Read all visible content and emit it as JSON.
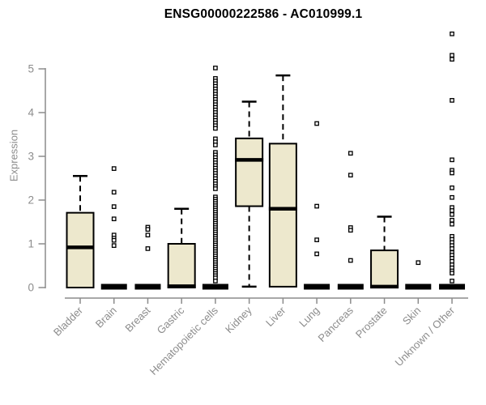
{
  "chart_data": {
    "type": "boxplot",
    "title": "ENSG00000222586 - AC010999.1",
    "xlabel": "",
    "ylabel": "Expression",
    "ylim": [
      0,
      5
    ],
    "yticks": [
      0,
      1,
      2,
      3,
      4,
      5
    ],
    "grid": false,
    "legend": "none",
    "box_fill": "#EDE8CD",
    "box_stroke": "#000000",
    "axis_color": "#8C8C8C",
    "categories": [
      "Bladder",
      "Brain",
      "Breast",
      "Gastric",
      "Hematopoietic cells",
      "Kidney",
      "Liver",
      "Lung",
      "Pancreas",
      "Prostate",
      "Skin",
      "Unknown / Other"
    ],
    "series": [
      {
        "name": "Bladder",
        "q1": 0,
        "median": 0.92,
        "q3": 1.71,
        "whisker_low": 0,
        "whisker_high": 2.55,
        "outliers": []
      },
      {
        "name": "Brain",
        "q1": 0,
        "median": 0,
        "q3": 0,
        "whisker_low": 0,
        "whisker_high": 0,
        "outliers": [
          2.72,
          2.18,
          1.85,
          1.57,
          1.2,
          1.13,
          1.08,
          0.96
        ]
      },
      {
        "name": "Breast",
        "q1": 0,
        "median": 0,
        "q3": 0,
        "whisker_low": 0,
        "whisker_high": 0,
        "outliers": [
          1.38,
          1.33,
          1.2,
          0.89
        ]
      },
      {
        "name": "Gastric",
        "q1": 0,
        "median": 0.03,
        "q3": 1.0,
        "whisker_low": 0,
        "whisker_high": 1.8,
        "outliers": []
      },
      {
        "name": "Hematopoietic cells",
        "q1": 0,
        "median": 0,
        "q3": 0,
        "whisker_low": 0,
        "whisker_high": 0,
        "outliers": [
          5.02,
          4.78,
          4.72,
          4.66,
          4.6,
          4.54,
          4.48,
          4.42,
          4.36,
          4.3,
          4.24,
          4.18,
          4.12,
          4.06,
          4.0,
          3.94,
          3.88,
          3.82,
          3.76,
          3.7,
          3.64,
          3.4,
          3.33,
          3.26,
          3.09,
          3.03,
          2.97,
          2.91,
          2.85,
          2.79,
          2.73,
          2.67,
          2.61,
          2.55,
          2.49,
          2.43,
          2.37,
          2.31,
          2.26,
          2.07,
          2.02,
          1.97,
          1.92,
          1.87,
          1.82,
          1.77,
          1.72,
          1.67,
          1.62,
          1.57,
          1.52,
          1.47,
          1.42,
          1.37,
          1.32,
          1.27,
          1.22,
          1.17,
          1.12,
          1.07,
          1.02,
          0.97,
          0.92,
          0.87,
          0.82,
          0.77,
          0.72,
          0.67,
          0.62,
          0.57,
          0.52,
          0.47,
          0.42,
          0.37,
          0.32,
          0.27,
          0.22,
          0.15
        ]
      },
      {
        "name": "Kidney",
        "q1": 1.86,
        "median": 2.92,
        "q3": 3.41,
        "whisker_low": 0.02,
        "whisker_high": 4.25,
        "outliers": []
      },
      {
        "name": "Liver",
        "q1": 0.02,
        "median": 1.8,
        "q3": 3.29,
        "whisker_low": 0.02,
        "whisker_high": 4.85,
        "outliers": []
      },
      {
        "name": "Lung",
        "q1": 0,
        "median": 0,
        "q3": 0,
        "whisker_low": 0,
        "whisker_high": 0,
        "outliers": [
          3.75,
          1.86,
          1.09,
          0.77
        ]
      },
      {
        "name": "Pancreas",
        "q1": 0,
        "median": 0,
        "q3": 0,
        "whisker_low": 0,
        "whisker_high": 0,
        "outliers": [
          3.07,
          2.57,
          1.37,
          1.31,
          0.62
        ]
      },
      {
        "name": "Prostate",
        "q1": 0,
        "median": 0.02,
        "q3": 0.85,
        "whisker_low": 0,
        "whisker_high": 1.62,
        "outliers": []
      },
      {
        "name": "Skin",
        "q1": 0,
        "median": 0,
        "q3": 0,
        "whisker_low": 0,
        "whisker_high": 0,
        "outliers": [
          0.57
        ]
      },
      {
        "name": "Unknown / Other",
        "q1": 0,
        "median": 0,
        "q3": 0,
        "whisker_low": 0,
        "whisker_high": 0,
        "outliers": [
          5.8,
          5.31,
          5.22,
          4.28,
          2.92,
          2.68,
          2.62,
          2.28,
          2.06,
          1.83,
          1.76,
          1.67,
          1.54,
          1.45,
          1.17,
          1.1,
          1.03,
          0.96,
          0.89,
          0.8,
          0.74,
          0.67,
          0.6,
          0.52,
          0.45,
          0.38,
          0.33,
          0.15
        ]
      }
    ]
  }
}
